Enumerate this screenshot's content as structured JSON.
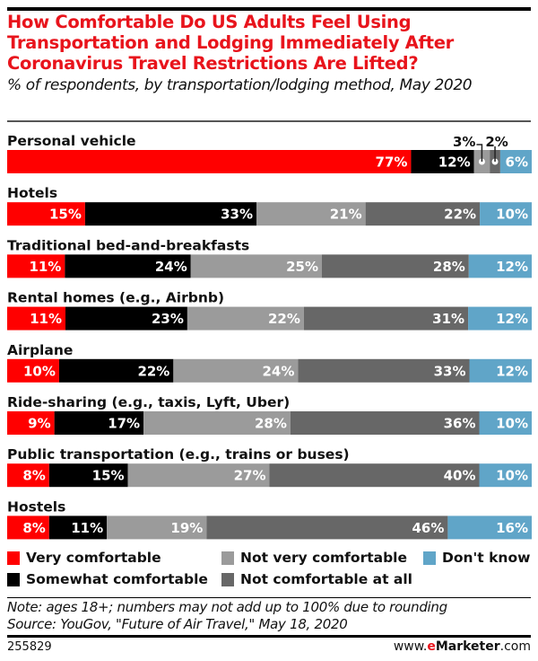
{
  "header": {
    "title": "How Comfortable Do US Adults Feel Using Transportation and Lodging Immediately After Coronavirus Travel Restrictions Are Lifted?",
    "subtitle": "% of respondents, by transportation/lodging method, May 2020"
  },
  "colors": {
    "very_comfortable": "#ff0000",
    "somewhat_comfortable": "#000000",
    "not_very_comfortable": "#9b9b9b",
    "not_comfortable_at_all": "#676767",
    "dont_know": "#60a5c8",
    "title": "#e8141c"
  },
  "chart_data": {
    "type": "bar",
    "orientation": "horizontal",
    "stacked": true,
    "title": "How Comfortable Do US Adults Feel Using Transportation and Lodging Immediately After Coronavirus Travel Restrictions Are Lifted?",
    "subtitle": "% of respondents, by transportation/lodging method, May 2020",
    "xlabel": "",
    "ylabel": "",
    "categories": [
      "Personal vehicle",
      "Hotels",
      "Traditional bed-and-breakfasts",
      "Rental homes (e.g., Airbnb)",
      "Airplane",
      "Ride-sharing (e.g., taxis, Lyft, Uber)",
      "Public transportation (e.g., trains or buses)",
      "Hostels"
    ],
    "series": [
      {
        "name": "Very comfortable",
        "color": "#ff0000",
        "values": [
          77,
          15,
          11,
          11,
          10,
          9,
          8,
          8
        ]
      },
      {
        "name": "Somewhat comfortable",
        "color": "#000000",
        "values": [
          12,
          33,
          24,
          23,
          22,
          17,
          15,
          11
        ]
      },
      {
        "name": "Not very comfortable",
        "color": "#9b9b9b",
        "values": [
          3,
          21,
          25,
          22,
          24,
          28,
          27,
          19
        ]
      },
      {
        "name": "Not comfortable at all",
        "color": "#676767",
        "values": [
          2,
          22,
          28,
          31,
          33,
          36,
          40,
          46
        ]
      },
      {
        "name": "Don't know",
        "color": "#60a5c8",
        "values": [
          6,
          10,
          12,
          12,
          12,
          10,
          10,
          16
        ]
      }
    ],
    "value_suffix": "%",
    "legend_position": "bottom",
    "grid": false
  },
  "legend": [
    {
      "label": "Very comfortable",
      "color": "#ff0000"
    },
    {
      "label": "Somewhat comfortable",
      "color": "#000000"
    },
    {
      "label": "Not very comfortable",
      "color": "#9b9b9b"
    },
    {
      "label": "Not comfortable at all",
      "color": "#676767"
    },
    {
      "label": "Don't know",
      "color": "#60a5c8"
    }
  ],
  "footer": {
    "note": "Note: ages 18+; numbers may not add up to 100% due to rounding",
    "source": "Source: YouGov, \"Future of Air Travel,\" May 18, 2020",
    "chart_id": "255829",
    "brand_prefix": "www.",
    "brand_e": "e",
    "brand_name": "Marketer",
    "brand_suffix": ".com"
  }
}
